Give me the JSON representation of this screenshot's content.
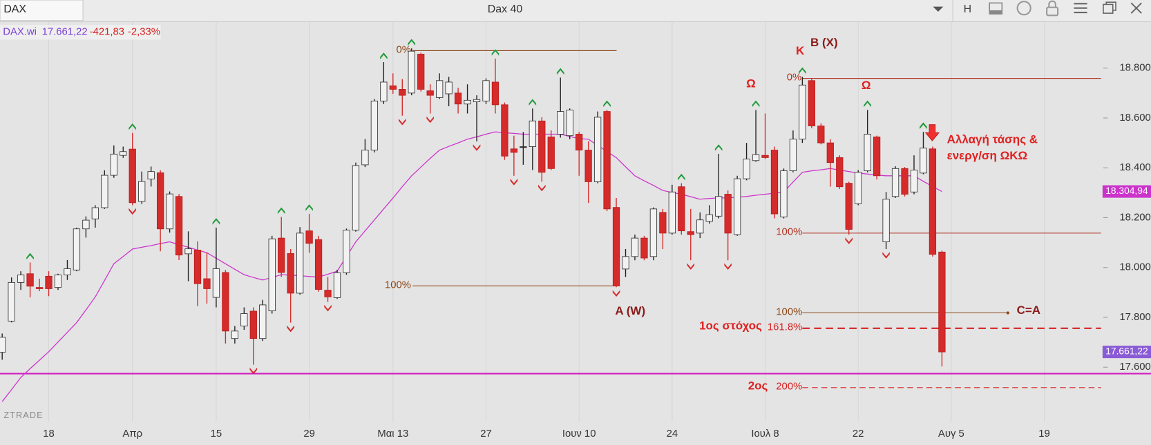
{
  "header": {
    "symbol": "DAX",
    "title": "Dax 40",
    "interval": "H"
  },
  "quote": {
    "name": "DAX.wi",
    "price": "17.661,22",
    "change": "-421,83",
    "change_pct": "-2,33%"
  },
  "watermark": "ZTRADE",
  "annotations": {
    "a_w": "A (W)",
    "k": "K",
    "b_x": "B (X)",
    "omega": [
      "Ω",
      "Ω"
    ],
    "c_a": "C=A",
    "target1": "1ος στόχος",
    "target2": "2ος",
    "trend_change": [
      "Αλλαγή τάσης &",
      "ενεργ/ση ΩΚΩ"
    ]
  },
  "chart_data": {
    "type": "candlestick",
    "categories": [
      null,
      null,
      null,
      null,
      null,
      "18",
      null,
      null,
      null,
      null,
      null,
      null,
      null,
      null,
      "Απρ",
      null,
      null,
      null,
      null,
      null,
      null,
      null,
      null,
      "15",
      null,
      null,
      null,
      null,
      null,
      null,
      null,
      null,
      null,
      "29",
      null,
      null,
      null,
      null,
      null,
      null,
      null,
      null,
      "Μαι 13",
      null,
      null,
      null,
      null,
      null,
      null,
      null,
      null,
      null,
      "27",
      null,
      null,
      null,
      null,
      null,
      null,
      null,
      null,
      null,
      "Ιουν 10",
      null,
      null,
      null,
      null,
      null,
      null,
      null,
      null,
      null,
      "24",
      null,
      null,
      null,
      null,
      null,
      null,
      null,
      null,
      null,
      "Ιουλ 8",
      null,
      null,
      null,
      null,
      null,
      null,
      null,
      null,
      null,
      "22",
      null,
      null,
      null,
      null,
      null,
      null,
      null,
      null,
      null,
      "Αυγ 5",
      null,
      null,
      null,
      null,
      null,
      null,
      null,
      null,
      null,
      "19",
      null,
      null,
      null,
      null,
      null
    ],
    "open": [
      17660,
      17785,
      17940,
      17975,
      17920,
      17965,
      17920,
      17970,
      17990,
      18155,
      18195,
      18240,
      18370,
      18450,
      18475,
      18265,
      18355,
      18380,
      18155,
      18285,
      18055,
      18070,
      17955,
      17880,
      17980,
      17715,
      17765,
      17825,
      17715,
      17826,
      18118,
      18056,
      17897,
      18147,
      18112,
      17909,
      17879,
      17979,
      18150,
      18412,
      18471,
      18668,
      18729,
      18715,
      18700,
      18856,
      18709,
      18682,
      18697,
      18700,
      18656,
      18665,
      18668,
      18744,
      18653,
      18476,
      18485,
      18485,
      18588,
      18524,
      18535,
      18529,
      18535,
      18471,
      18344,
      18626,
      18241,
      17994,
      18044,
      18118,
      18044,
      18221,
      18138,
      18324,
      18144,
      18138,
      18185,
      18206,
      18294,
      18132,
      18356,
      18429,
      18450,
      18471,
      18203,
      18388,
      18515,
      18750,
      18568,
      18500,
      18441,
      18338,
      18256,
      18388,
      18524,
      18103,
      18285,
      18397,
      18303,
      18379,
      18476,
      18062,
      null,
      null,
      null,
      null,
      null,
      null,
      null,
      null,
      null,
      null,
      null,
      null,
      null,
      null,
      null,
      null
    ],
    "high": [
      17735,
      17960,
      17985,
      18020,
      17955,
      17985,
      17975,
      18030,
      18160,
      18205,
      18250,
      18390,
      18490,
      18485,
      18540,
      18385,
      18405,
      18390,
      18305,
      18295,
      18145,
      18105,
      18060,
      18160,
      17990,
      17765,
      17840,
      17840,
      17870,
      18127,
      18203,
      18074,
      18162,
      18215,
      18127,
      17962,
      17991,
      18156,
      18421,
      18515,
      18676,
      18824,
      18779,
      18756,
      18879,
      18862,
      18735,
      18779,
      18765,
      18721,
      18735,
      18691,
      18759,
      18838,
      18662,
      18529,
      18544,
      18638,
      18603,
      18550,
      18762,
      18638,
      18544,
      18506,
      18626,
      18632,
      18279,
      18074,
      18132,
      18127,
      18241,
      18235,
      18332,
      18338,
      18235,
      18221,
      18250,
      18456,
      18309,
      18368,
      18500,
      18632,
      18618,
      18485,
      18397,
      18550,
      18765,
      18759,
      18579,
      18515,
      18450,
      18344,
      18391,
      18632,
      18529,
      18303,
      18406,
      18403,
      18450,
      18544,
      18485,
      18068,
      null,
      null,
      null,
      null,
      null,
      null,
      null,
      null,
      null,
      null,
      null,
      null,
      null,
      null,
      null,
      null
    ],
    "low": [
      17630,
      17780,
      17910,
      17880,
      17905,
      17885,
      17910,
      17950,
      17985,
      18120,
      18160,
      18235,
      18360,
      18440,
      18250,
      18255,
      18325,
      18065,
      18140,
      18030,
      17945,
      17845,
      17855,
      17840,
      17695,
      17695,
      17750,
      17610,
      17705,
      17815,
      17962,
      17779,
      17891,
      18059,
      17903,
      17862,
      17874,
      17971,
      18144,
      18403,
      18462,
      18656,
      18697,
      18609,
      18691,
      18706,
      18618,
      18676,
      18647,
      18618,
      18618,
      18506,
      18656,
      18618,
      18432,
      18368,
      18412,
      18391,
      18344,
      18391,
      18521,
      18515,
      18368,
      18259,
      18338,
      18226,
      17921,
      17962,
      18029,
      18029,
      18029,
      18074,
      18132,
      18132,
      18029,
      18118,
      18176,
      18197,
      18029,
      18127,
      18350,
      18424,
      18435,
      18197,
      18197,
      18382,
      18500,
      18559,
      18494,
      18324,
      18315,
      18132,
      18250,
      18382,
      18353,
      18074,
      18279,
      18285,
      18294,
      18374,
      18044,
      17603,
      null,
      null,
      null,
      null,
      null,
      null,
      null,
      null,
      null,
      null,
      null,
      null,
      null,
      null,
      null,
      null
    ],
    "close": [
      17720,
      17940,
      17970,
      17925,
      17915,
      17915,
      17970,
      17995,
      18155,
      18190,
      18240,
      18370,
      18455,
      18465,
      18260,
      18345,
      18385,
      18155,
      18295,
      18050,
      18075,
      17935,
      17915,
      17995,
      17745,
      17745,
      17815,
      17715,
      17850,
      18115,
      17980,
      17897,
      18138,
      18097,
      17912,
      17882,
      17979,
      18150,
      18409,
      18471,
      18668,
      18744,
      18715,
      18691,
      18868,
      18715,
      18691,
      18750,
      18744,
      18656,
      18671,
      18674,
      18750,
      18653,
      18447,
      18462,
      18485,
      18588,
      18382,
      18397,
      18626,
      18632,
      18471,
      18344,
      18603,
      18235,
      17926,
      18044,
      18118,
      18038,
      18235,
      18138,
      18303,
      18147,
      18132,
      18191,
      18212,
      18285,
      18138,
      18356,
      18435,
      18453,
      18441,
      18215,
      18388,
      18515,
      18732,
      18568,
      18500,
      18421,
      18324,
      18153,
      18382,
      18535,
      18368,
      18274,
      18397,
      18294,
      18391,
      18479,
      18053,
      17661.22,
      null,
      null,
      null,
      null,
      null,
      null,
      null,
      null,
      null,
      null,
      null,
      null,
      null,
      null,
      null,
      null
    ],
    "up_color": "#f2f2f2",
    "down_color": "#d62b2b",
    "fractal_up_color": "#1f9a3a",
    "fractal_down_color": "#d62b2b",
    "ma": {
      "color": "#cc33cc",
      "values": [
        17462,
        17510,
        17559,
        17594,
        17628,
        17662,
        17701,
        17740,
        17779,
        17830,
        17882,
        17948,
        18015,
        18044,
        18074,
        18081,
        18088,
        18096,
        18103,
        18092,
        18081,
        18070,
        18059,
        18037,
        18015,
        17993,
        17971,
        17960,
        17950,
        17960,
        17971,
        17969,
        17967,
        17964,
        17962,
        17973,
        17985,
        18044,
        18103,
        18147,
        18191,
        18235,
        18279,
        18324,
        18368,
        18403,
        18438,
        18471,
        18486,
        18500,
        18515,
        18524,
        18535,
        18544,
        18541,
        18538,
        18535,
        18535,
        18535,
        18535,
        18535,
        18526,
        18517,
        18515,
        18490,
        18465,
        18441,
        18404,
        18368,
        18348,
        18329,
        18309,
        18301,
        18294,
        18284,
        18274,
        18277,
        18279,
        18279,
        18282,
        18285,
        18290,
        18294,
        18298,
        18303,
        18343,
        18382,
        18388,
        18392,
        18397,
        18391,
        18385,
        18379,
        18375,
        18371,
        18368,
        18368,
        18368,
        18368,
        18346,
        18325,
        18304.94,
        null,
        null,
        null,
        null,
        null,
        null,
        null,
        null,
        null,
        null,
        null,
        null,
        null,
        null,
        null,
        null
      ]
    },
    "ma_label": {
      "value": 18304.94,
      "label": "18.304,94"
    },
    "last_label": {
      "value": 17661.22,
      "label": "17.661,22"
    },
    "levels": [
      {
        "label": "0%",
        "value": 18870
      },
      {
        "label": "100%",
        "value": 17926
      },
      {
        "label": "0%",
        "value": 18759
      },
      {
        "label": "100%",
        "value": 18138
      },
      {
        "label": "100%",
        "value": 17818
      },
      {
        "label": "161.8%",
        "value": 17756
      },
      {
        "label": "200%",
        "value": 17518
      }
    ],
    "support_line": {
      "value": 17574,
      "color": "#d020c0"
    },
    "ylim": [
      17382,
      18985
    ],
    "yticks": [
      {
        "value": 17600,
        "label": "17.600"
      },
      {
        "value": 17800,
        "label": "17.800"
      },
      {
        "value": 18000,
        "label": "18.000"
      },
      {
        "value": 18200,
        "label": "18.200"
      },
      {
        "value": 18400,
        "label": "18.400"
      },
      {
        "value": 18600,
        "label": "18.600"
      },
      {
        "value": 18800,
        "label": "18.800"
      }
    ],
    "grid": true
  }
}
